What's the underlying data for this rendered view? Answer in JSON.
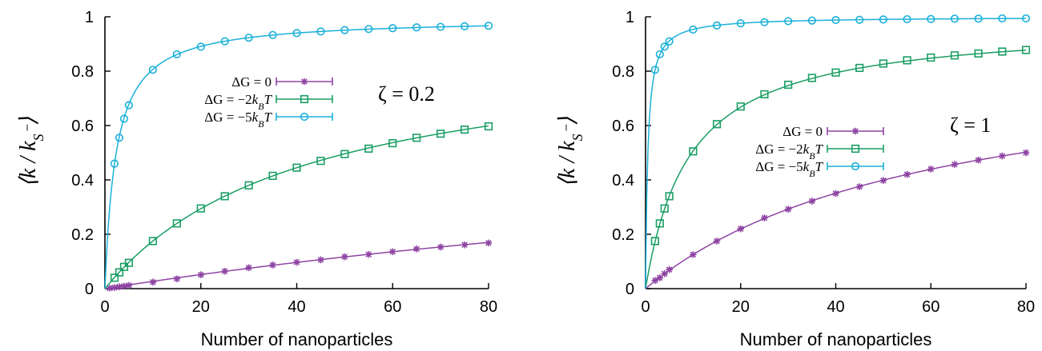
{
  "chart_data": [
    {
      "type": "line",
      "xlabel": "Number of nanoparticles",
      "ylabel": "⟨k / k_S⁻⟩",
      "xlim": [
        0,
        80
      ],
      "ylim": [
        0,
        1
      ],
      "xticks": [
        "0",
        "20",
        "40",
        "60",
        "80"
      ],
      "yticks": [
        "0",
        "0.2",
        "0.4",
        "0.6",
        "0.8",
        "1"
      ],
      "annotation": "ζ = 0.2",
      "legend_position": "center",
      "series": [
        {
          "name": "ΔG = 0",
          "color": "#8e44a3",
          "marker": "star",
          "x": [
            1,
            2,
            3,
            4,
            5,
            10,
            15,
            20,
            25,
            30,
            35,
            40,
            45,
            50,
            55,
            60,
            65,
            70,
            75,
            80
          ],
          "y": [
            0.002,
            0.004,
            0.007,
            0.009,
            0.012,
            0.024,
            0.036,
            0.051,
            0.064,
            0.077,
            0.087,
            0.097,
            0.106,
            0.117,
            0.126,
            0.136,
            0.146,
            0.153,
            0.161,
            0.168
          ]
        },
        {
          "name": "ΔG = −2k_BT",
          "color": "#1a9e63",
          "marker": "square",
          "x": [
            2,
            3,
            4,
            5,
            10,
            15,
            20,
            25,
            30,
            35,
            40,
            45,
            50,
            55,
            60,
            65,
            70,
            75,
            80
          ],
          "y": [
            0.04,
            0.06,
            0.08,
            0.095,
            0.175,
            0.24,
            0.295,
            0.34,
            0.38,
            0.415,
            0.445,
            0.47,
            0.495,
            0.515,
            0.535,
            0.555,
            0.57,
            0.585,
            0.597
          ]
        },
        {
          "name": "ΔG = −5k_BT",
          "color": "#1ab0d8",
          "marker": "circle",
          "x": [
            2,
            3,
            4,
            5,
            10,
            15,
            20,
            25,
            30,
            35,
            40,
            45,
            50,
            55,
            60,
            65,
            70,
            75,
            80
          ],
          "y": [
            0.46,
            0.555,
            0.625,
            0.675,
            0.805,
            0.862,
            0.89,
            0.91,
            0.923,
            0.933,
            0.94,
            0.946,
            0.951,
            0.955,
            0.958,
            0.961,
            0.963,
            0.965,
            0.967
          ]
        }
      ]
    },
    {
      "type": "line",
      "xlabel": "Number of nanoparticles",
      "ylabel": "⟨k / k_S⁻⟩",
      "xlim": [
        0,
        80
      ],
      "ylim": [
        0,
        1
      ],
      "xticks": [
        "0",
        "20",
        "40",
        "60",
        "80"
      ],
      "yticks": [
        "0",
        "0.2",
        "0.4",
        "0.6",
        "0.8",
        "1"
      ],
      "annotation": "ζ = 1",
      "legend_position": "center",
      "series": [
        {
          "name": "ΔG = 0",
          "color": "#8e44a3",
          "marker": "star",
          "x": [
            2,
            3,
            4,
            5,
            10,
            15,
            20,
            25,
            30,
            35,
            40,
            45,
            50,
            55,
            60,
            65,
            70,
            75,
            80
          ],
          "y": [
            0.03,
            0.04,
            0.055,
            0.07,
            0.125,
            0.175,
            0.22,
            0.26,
            0.292,
            0.322,
            0.35,
            0.375,
            0.398,
            0.42,
            0.44,
            0.457,
            0.473,
            0.488,
            0.5
          ]
        },
        {
          "name": "ΔG = −2k_BT",
          "color": "#1a9e63",
          "marker": "square",
          "x": [
            2,
            3,
            4,
            5,
            10,
            15,
            20,
            25,
            30,
            35,
            40,
            45,
            50,
            55,
            60,
            65,
            70,
            75,
            80
          ],
          "y": [
            0.175,
            0.24,
            0.295,
            0.34,
            0.505,
            0.605,
            0.67,
            0.715,
            0.75,
            0.775,
            0.795,
            0.812,
            0.828,
            0.84,
            0.85,
            0.858,
            0.865,
            0.872,
            0.878
          ]
        },
        {
          "name": "ΔG = −5k_BT",
          "color": "#1ab0d8",
          "marker": "circle",
          "x": [
            2,
            3,
            4,
            5,
            10,
            15,
            20,
            25,
            30,
            35,
            40,
            45,
            50,
            55,
            60,
            65,
            70,
            75,
            80
          ],
          "y": [
            0.805,
            0.862,
            0.89,
            0.91,
            0.953,
            0.968,
            0.976,
            0.98,
            0.984,
            0.986,
            0.988,
            0.989,
            0.99,
            0.991,
            0.992,
            0.993,
            0.993,
            0.994,
            0.994
          ]
        }
      ]
    }
  ]
}
